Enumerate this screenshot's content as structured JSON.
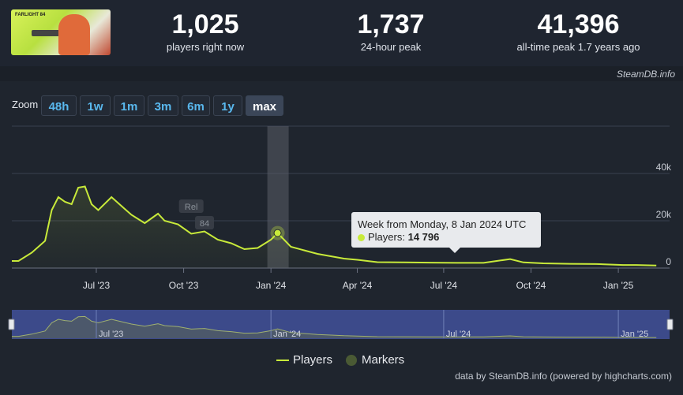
{
  "stats": [
    {
      "value": "1,025",
      "label": "players right now"
    },
    {
      "value": "1,737",
      "label": "24-hour peak"
    },
    {
      "value": "41,396",
      "label": "all-time peak 1.7 years ago"
    }
  ],
  "thumbnail_logo": "FARLIGHT 84",
  "watermark": "SteamDB.info",
  "zoom": {
    "label": "Zoom",
    "buttons": [
      "48h",
      "1w",
      "1m",
      "3m",
      "6m",
      "1y",
      "max"
    ],
    "active": "max"
  },
  "tooltip": {
    "title": "Week from Monday, 8 Jan 2024 UTC",
    "series_label": "Players:",
    "value": "14 796"
  },
  "legend": {
    "players": "Players",
    "markers": "Markers"
  },
  "credit": "data by SteamDB.info (powered by highcharts.com)",
  "colors": {
    "line": "#c8ea3a",
    "marker": "#4a5a34",
    "navigator": "#3c4a8a"
  },
  "chart_data": {
    "type": "area",
    "series": [
      {
        "name": "Players"
      }
    ],
    "x": [
      "2023-04-10",
      "2023-04-24",
      "2023-05-08",
      "2023-05-15",
      "2023-05-22",
      "2023-05-29",
      "2023-06-05",
      "2023-06-12",
      "2023-06-19",
      "2023-06-26",
      "2023-07-03",
      "2023-07-17",
      "2023-07-31",
      "2023-08-07",
      "2023-08-21",
      "2023-09-04",
      "2023-09-11",
      "2023-09-25",
      "2023-10-09",
      "2023-10-23",
      "2023-11-06",
      "2023-11-20",
      "2023-12-04",
      "2023-12-18",
      "2024-01-01",
      "2024-01-08",
      "2024-01-22",
      "2024-02-05",
      "2024-02-19",
      "2024-03-04",
      "2024-03-18",
      "2024-04-01",
      "2024-04-22",
      "2024-05-20",
      "2024-06-17",
      "2024-07-15",
      "2024-08-12",
      "2024-09-09",
      "2024-09-23",
      "2024-10-14",
      "2024-11-11",
      "2024-12-09",
      "2025-01-06",
      "2025-01-20",
      "2025-02-10"
    ],
    "values": [
      3000,
      6500,
      11500,
      24500,
      30000,
      28000,
      27000,
      34000,
      34500,
      27000,
      24500,
      30000,
      25000,
      22500,
      19000,
      23000,
      20000,
      18500,
      14500,
      15500,
      12000,
      10500,
      8000,
      8500,
      12000,
      14796,
      9000,
      7500,
      6000,
      5000,
      4000,
      3500,
      2500,
      2400,
      2300,
      2200,
      2200,
      3800,
      2400,
      2000,
      1800,
      1700,
      1300,
      1300,
      1100
    ],
    "markers": [
      {
        "label": "Rel",
        "x": "2023-10-09",
        "y": 26000
      },
      {
        "label": "84",
        "x": "2023-10-23",
        "y": 19000
      }
    ],
    "highlight_week": "2024-01-08",
    "y_ticks": [
      "0",
      "20k",
      "40k"
    ],
    "ylim": [
      0,
      60000
    ],
    "x_ticks": [
      "Jul '23",
      "Oct '23",
      "Jan '24",
      "Apr '24",
      "Jul '24",
      "Oct '24",
      "Jan '25"
    ],
    "navigator_ticks": [
      "Jul '23",
      "Jan '24",
      "Jul '24",
      "Jan '25"
    ],
    "grid": true,
    "legend_position": "bottom"
  }
}
